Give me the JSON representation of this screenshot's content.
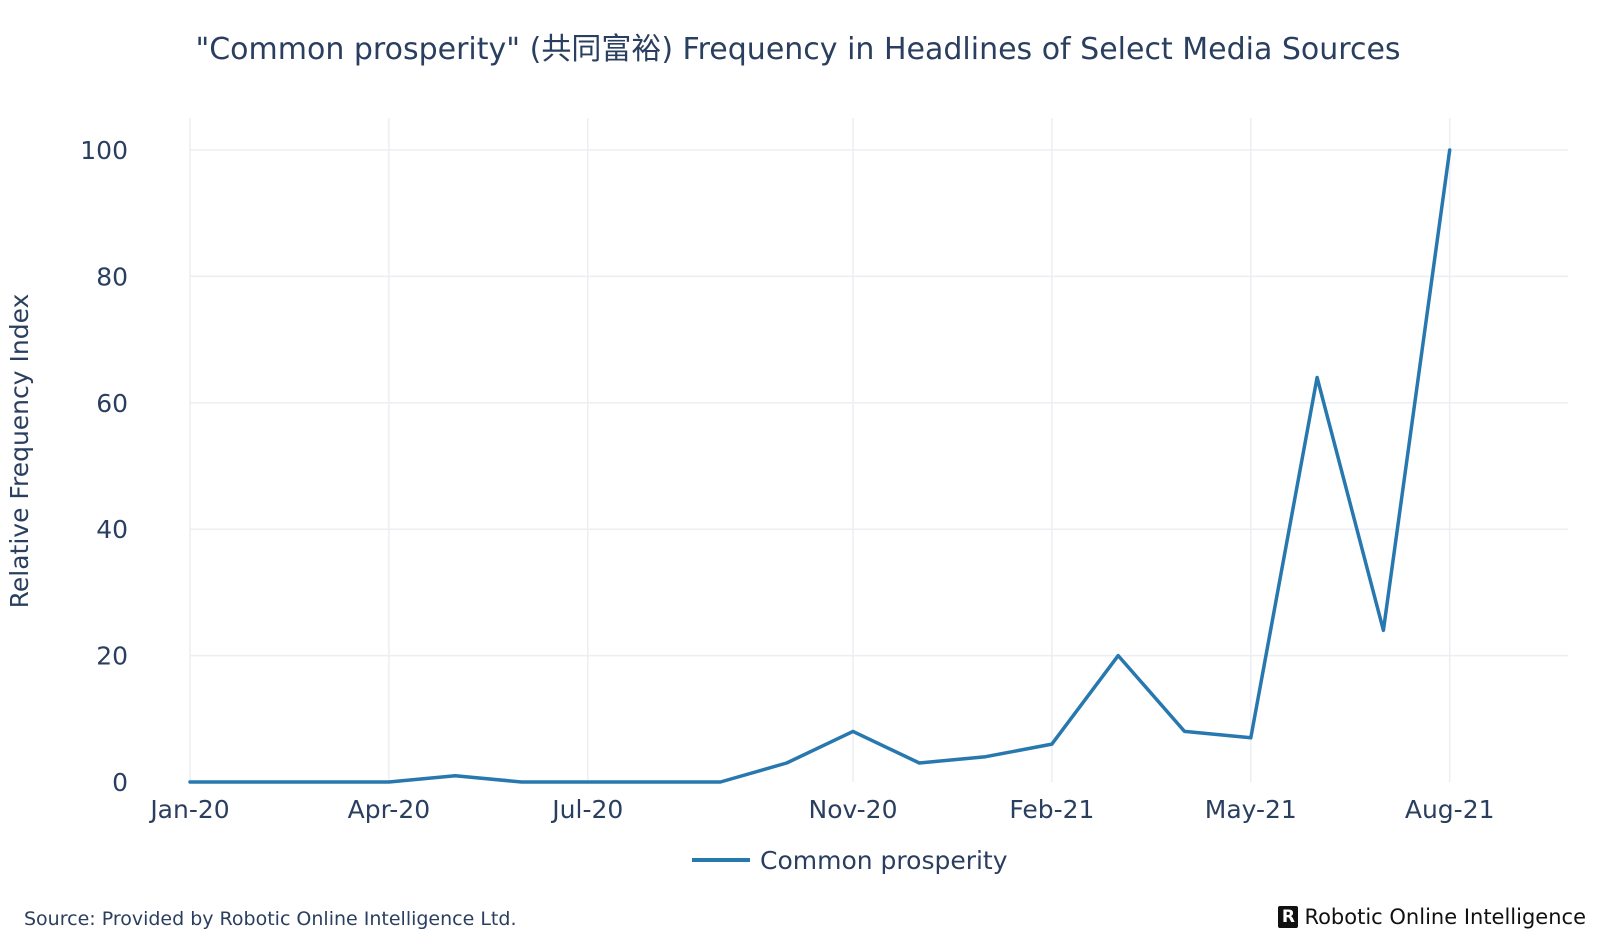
{
  "chart_data": {
    "type": "line",
    "title": "\"Common prosperity\" (共同富裕) Frequency in Headlines of Select Media Sources",
    "xlabel": "",
    "ylabel": "Relative Frequency Index",
    "x": [
      "Jan-20",
      "Feb-20",
      "Mar-20",
      "Apr-20",
      "May-20",
      "Jun-20",
      "Jul-20",
      "Aug-20",
      "Sep-20",
      "Oct-20",
      "Nov-20",
      "Dec-20",
      "Jan-21",
      "Feb-21",
      "Mar-21",
      "Apr-21",
      "May-21",
      "Jun-21",
      "Jul-21",
      "Aug-21"
    ],
    "x_ticks": [
      "Jan-20",
      "Apr-20",
      "Jul-20",
      "Nov-20",
      "Feb-21",
      "May-21",
      "Aug-21"
    ],
    "y_ticks": [
      0,
      20,
      40,
      60,
      80,
      100
    ],
    "ylim": [
      0,
      105
    ],
    "grid": true,
    "legend_position": "bottom-center",
    "series": [
      {
        "name": "Common prosperity",
        "color": "#2878b0",
        "values": [
          0,
          0,
          0,
          0,
          1,
          0,
          0,
          0,
          0,
          3,
          8,
          3,
          4,
          6,
          20,
          8,
          7,
          64,
          24,
          100
        ]
      }
    ]
  },
  "footer": {
    "source": "Source: Provided by Robotic Online Intelligence Ltd.",
    "brand_logo_letter": "R",
    "brand_name": "Robotic Online Intelligence"
  }
}
